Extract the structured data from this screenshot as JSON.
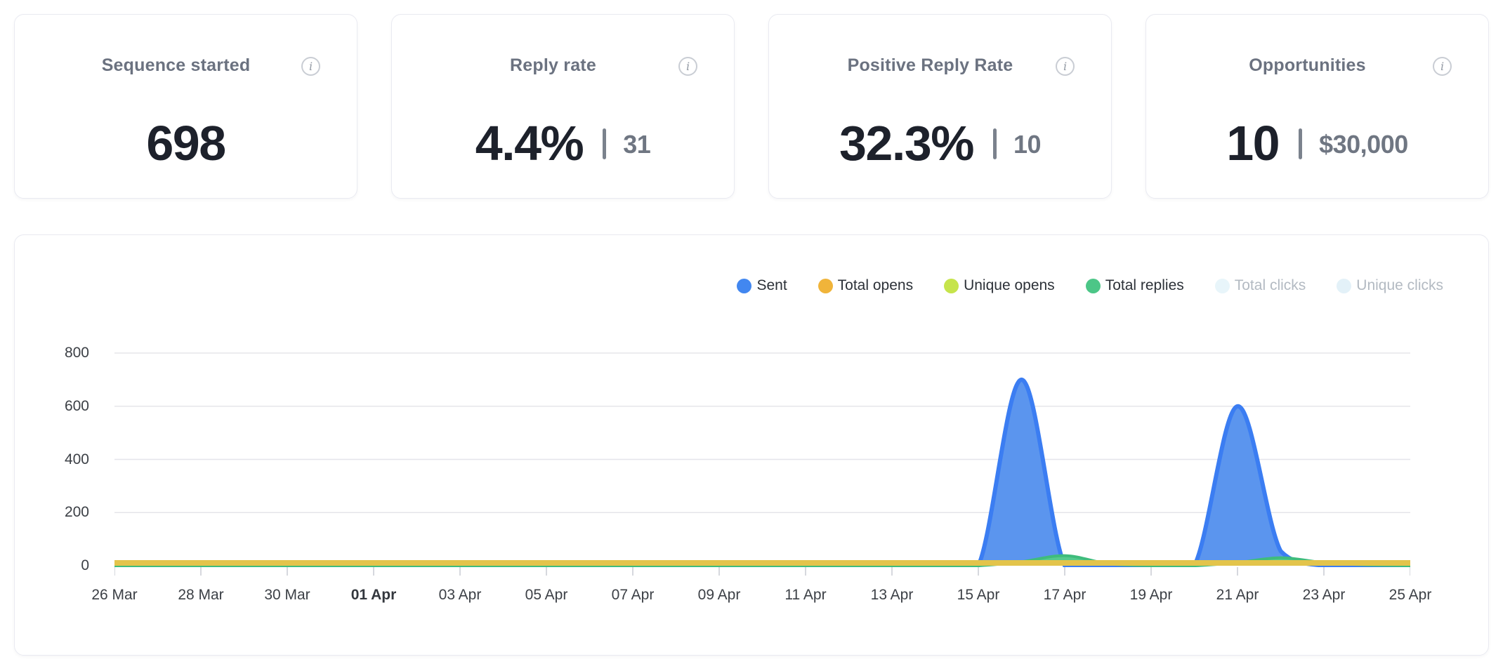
{
  "cards": [
    {
      "title": "Sequence started",
      "value": "698",
      "secondary": "",
      "info_icon": "i"
    },
    {
      "title": "Reply rate",
      "value": "4.4%",
      "secondary": "31",
      "info_icon": "i"
    },
    {
      "title": "Positive Reply Rate",
      "value": "32.3%",
      "secondary": "10",
      "info_icon": "i"
    },
    {
      "title": "Opportunities",
      "value": "10",
      "secondary": "$30,000",
      "info_icon": "i"
    }
  ],
  "colors": {
    "card_border": "#e9eaf1",
    "title_text": "#6b7280",
    "value_text": "#1d212b",
    "secondary_text": "#6f7682",
    "grid_line": "#e5e5ea",
    "tick_mark": "#d6d8de",
    "axis_text": "#3c4046",
    "legend_text": "#2c3138",
    "legend_text_muted": "#b3bac2"
  },
  "chart_data": {
    "type": "area",
    "grid": "horizontal",
    "legend_position": "top-right",
    "ylim": [
      0,
      800
    ],
    "yticks": [
      0,
      200,
      400,
      600,
      800
    ],
    "x": [
      "26 Mar",
      "27 Mar",
      "28 Mar",
      "29 Mar",
      "30 Mar",
      "31 Mar",
      "01 Apr",
      "02 Apr",
      "03 Apr",
      "04 Apr",
      "05 Apr",
      "06 Apr",
      "07 Apr",
      "08 Apr",
      "09 Apr",
      "10 Apr",
      "11 Apr",
      "12 Apr",
      "13 Apr",
      "14 Apr",
      "15 Apr",
      "16 Apr",
      "17 Apr",
      "18 Apr",
      "19 Apr",
      "20 Apr",
      "21 Apr",
      "22 Apr",
      "23 Apr",
      "24 Apr",
      "25 Apr"
    ],
    "x_tick_labels": [
      "26 Mar",
      "28 Mar",
      "30 Mar",
      "01 Apr",
      "03 Apr",
      "05 Apr",
      "07 Apr",
      "09 Apr",
      "11 Apr",
      "13 Apr",
      "15 Apr",
      "17 Apr",
      "19 Apr",
      "21 Apr",
      "23 Apr",
      "25 Apr"
    ],
    "tick_every": 2,
    "bold_tick": "01 Apr",
    "series": [
      {
        "name": "Sent",
        "legend_color": "#4287f0",
        "stroke": "#3b7df2",
        "fill": "#5b95ee",
        "stroke_width": 6,
        "visible": true,
        "z": 1,
        "values": [
          0,
          0,
          0,
          0,
          0,
          0,
          0,
          0,
          0,
          0,
          0,
          0,
          0,
          0,
          0,
          0,
          0,
          0,
          0,
          0,
          0,
          700,
          0,
          0,
          0,
          0,
          600,
          55,
          0,
          0,
          0
        ]
      },
      {
        "name": "Total opens",
        "legend_color": "#f0b43a",
        "stroke": "#e3c44b",
        "fill": "#e3c44b",
        "stroke_width": 7,
        "visible": true,
        "z": 4,
        "values": [
          12,
          12,
          12,
          12,
          12,
          12,
          12,
          12,
          12,
          12,
          12,
          12,
          12,
          12,
          12,
          12,
          12,
          12,
          12,
          12,
          12,
          12,
          12,
          12,
          12,
          12,
          12,
          12,
          12,
          12,
          12
        ]
      },
      {
        "name": "Unique opens",
        "legend_color": "#c6e44b",
        "stroke": "#c6e44b",
        "fill": "#cde95c",
        "stroke_width": 4,
        "visible": true,
        "z": 2,
        "values": [
          8,
          8,
          8,
          8,
          8,
          8,
          8,
          8,
          8,
          8,
          8,
          8,
          8,
          8,
          8,
          8,
          8,
          8,
          8,
          8,
          8,
          8,
          8,
          8,
          8,
          8,
          8,
          8,
          8,
          8,
          8
        ]
      },
      {
        "name": "Total replies",
        "legend_color": "#4cc687",
        "stroke": "#3fbc7c",
        "fill": "#55ca8d",
        "stroke_width": 4,
        "visible": true,
        "z": 3,
        "values": [
          0,
          0,
          0,
          0,
          0,
          0,
          0,
          0,
          0,
          0,
          0,
          0,
          0,
          0,
          0,
          0,
          0,
          0,
          0,
          0,
          0,
          15,
          38,
          8,
          0,
          0,
          12,
          30,
          12,
          3,
          0
        ]
      },
      {
        "name": "Total clicks",
        "legend_color": "#e8f5fa",
        "stroke": "#e8f5fa",
        "fill": "#e8f5fa",
        "stroke_width": 4,
        "visible": false,
        "z": 0,
        "values": [
          0,
          0,
          0,
          0,
          0,
          0,
          0,
          0,
          0,
          0,
          0,
          0,
          0,
          0,
          0,
          0,
          0,
          0,
          0,
          0,
          0,
          0,
          0,
          0,
          0,
          0,
          0,
          0,
          0,
          0,
          0
        ]
      },
      {
        "name": "Unique clicks",
        "legend_color": "#e3f1f8",
        "stroke": "#e3f1f8",
        "fill": "#e3f1f8",
        "stroke_width": 4,
        "visible": false,
        "z": 0,
        "values": [
          0,
          0,
          0,
          0,
          0,
          0,
          0,
          0,
          0,
          0,
          0,
          0,
          0,
          0,
          0,
          0,
          0,
          0,
          0,
          0,
          0,
          0,
          0,
          0,
          0,
          0,
          0,
          0,
          0,
          0,
          0
        ]
      }
    ]
  }
}
